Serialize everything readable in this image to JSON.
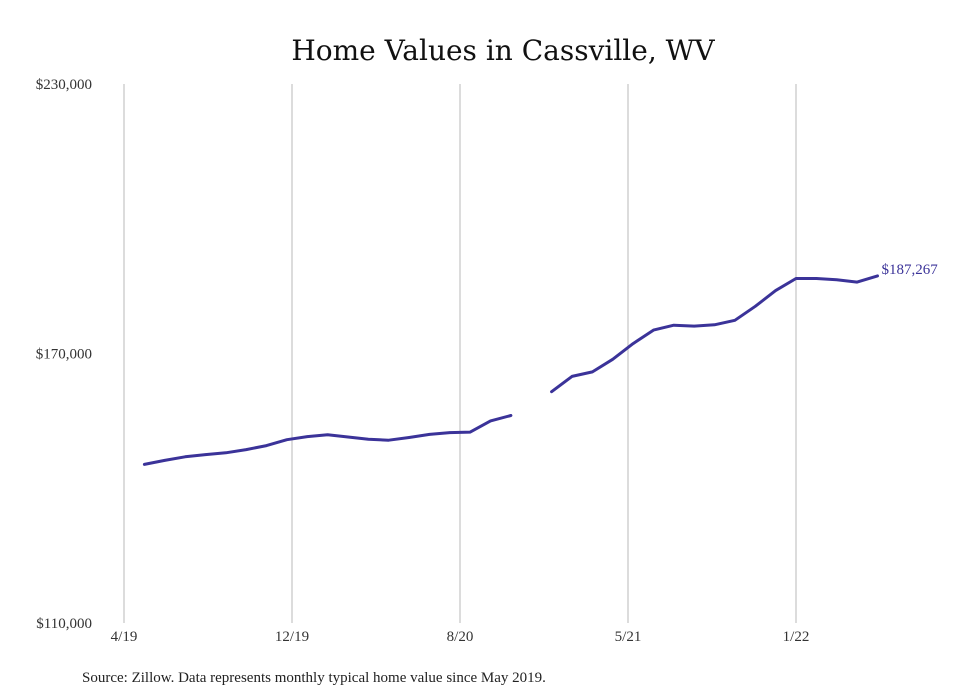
{
  "chart_data": {
    "type": "line",
    "title": "Home Values in Cassville, WV",
    "xlabel": "",
    "ylabel": "",
    "ylim": [
      110000,
      230000
    ],
    "y_ticks": [
      "$230,000",
      "$170,000",
      "$110,000"
    ],
    "x_ticks": [
      "4/19",
      "12/19",
      "8/20",
      "5/21",
      "1/22"
    ],
    "grid": "vertical",
    "line_color": "#3b3399",
    "end_label": "$187,267",
    "source_note": "Source: Zillow. Data represents monthly typical home value since May 2019.",
    "series": [
      {
        "values": [
          {
            "x": "2019-05",
            "y": 145300
          },
          {
            "x": "2019-06",
            "y": 146200
          },
          {
            "x": "2019-07",
            "y": 147000
          },
          {
            "x": "2019-08",
            "y": 147500
          },
          {
            "x": "2019-09",
            "y": 147900
          },
          {
            "x": "2019-10",
            "y": 148600
          },
          {
            "x": "2019-11",
            "y": 149500
          },
          {
            "x": "2019-12",
            "y": 150800
          },
          {
            "x": "2020-01",
            "y": 151500
          },
          {
            "x": "2020-02",
            "y": 151900
          },
          {
            "x": "2020-03",
            "y": 151400
          },
          {
            "x": "2020-04",
            "y": 150900
          },
          {
            "x": "2020-05",
            "y": 150700
          },
          {
            "x": "2020-06",
            "y": 151300
          },
          {
            "x": "2020-07",
            "y": 152000
          },
          {
            "x": "2020-08",
            "y": 152400
          },
          {
            "x": "2020-09",
            "y": 152500
          },
          {
            "x": "2020-10",
            "y": 155000
          },
          {
            "x": "2020-11",
            "y": 156200
          },
          {
            "x": "2020-12",
            "y": null
          },
          {
            "x": "2021-01",
            "y": 161500
          },
          {
            "x": "2021-02",
            "y": 164900
          },
          {
            "x": "2021-03",
            "y": 165900
          },
          {
            "x": "2021-04",
            "y": 168700
          },
          {
            "x": "2021-05",
            "y": 172200
          },
          {
            "x": "2021-06",
            "y": 175200
          },
          {
            "x": "2021-07",
            "y": 176300
          },
          {
            "x": "2021-08",
            "y": 176100
          },
          {
            "x": "2021-09",
            "y": 176400
          },
          {
            "x": "2021-10",
            "y": 177400
          },
          {
            "x": "2021-11",
            "y": 180500
          },
          {
            "x": "2021-12",
            "y": 184000
          },
          {
            "x": "2022-01",
            "y": 186700
          },
          {
            "x": "2022-02",
            "y": 186700
          },
          {
            "x": "2022-03",
            "y": 186400
          },
          {
            "x": "2022-04",
            "y": 185900
          },
          {
            "x": "2022-05",
            "y": 187267
          }
        ]
      }
    ]
  }
}
